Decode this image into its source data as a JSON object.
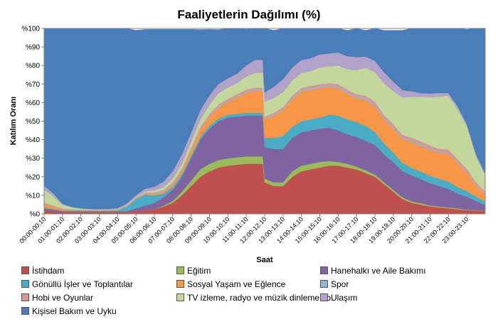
{
  "chart_data": {
    "type": "area",
    "stacked": true,
    "title": "Faaliyetlerin Dağılımı (%)",
    "xlabel": "Saat",
    "ylabel": "Katılım Oranı",
    "ylim": [
      0,
      100
    ],
    "yticks": [
      0,
      10,
      20,
      30,
      40,
      50,
      60,
      70,
      80,
      90,
      100
    ],
    "ytick_labels": [
      "%0",
      "%10",
      "%20",
      "%30",
      "%40",
      "%50",
      "%60",
      "%70",
      "%80",
      "%90",
      "%100"
    ],
    "x_tick_labels": [
      "00:00-00:10",
      "01:00-01:10",
      "02:00-02:10",
      "03:00-03:10",
      "04:00-04:10",
      "05:00-05:10",
      "06:00-06:10",
      "07:00-07:10",
      "08:00-08:10",
      "09:00-09:10",
      "10:00-10:10",
      "11:00-11:10",
      "12:00-12:10",
      "13:00-13:10",
      "14:00-14:10",
      "15:00-15:10",
      "16:00-16:10",
      "17:00-17:10",
      "18:00-18:10",
      "19:00-19:10",
      "20:00-20:10",
      "21:00-21:10",
      "22:00-22:10",
      "23:00-23:10"
    ],
    "x_hours": [
      0,
      0.5,
      1,
      1.5,
      2,
      2.5,
      3,
      3.5,
      4,
      4.5,
      5,
      5.5,
      6,
      6.5,
      7,
      7.5,
      8,
      8.5,
      9,
      9.5,
      10,
      10.5,
      11,
      11.5,
      11.9,
      12,
      12.5,
      13,
      13.5,
      14,
      14.5,
      15,
      15.5,
      16,
      16.5,
      17,
      17.5,
      18,
      18.5,
      19,
      19.5,
      20,
      20.5,
      21,
      21.5,
      22,
      22.5,
      23,
      23.5,
      24
    ],
    "legend_position": "bottom",
    "series": [
      {
        "name": "İstihdam",
        "color": "#c0504d",
        "values": [
          2,
          1.5,
          1,
          1,
          1,
          1,
          1,
          1,
          1,
          1,
          1.5,
          2,
          2.5,
          4,
          6,
          10,
          15,
          20,
          23,
          25,
          26,
          26.5,
          27,
          27,
          27,
          17,
          15,
          15,
          20,
          23,
          24,
          25,
          26,
          26,
          25,
          24,
          22,
          20,
          16,
          12,
          8,
          6,
          5,
          4,
          3.5,
          3,
          2.5,
          2,
          1.8,
          1.5
        ]
      },
      {
        "name": "Eğitim",
        "color": "#9bbb59",
        "values": [
          0,
          0,
          0,
          0,
          0,
          0,
          0,
          0,
          0,
          0,
          0,
          0,
          0,
          0.5,
          1,
          2,
          3,
          4,
          4,
          4,
          4,
          4,
          4,
          4,
          4,
          2,
          2,
          2,
          3,
          3,
          3,
          3,
          2.5,
          2,
          2,
          1.5,
          1.5,
          1.2,
          1,
          1,
          1,
          0.8,
          0.8,
          0.6,
          0.5,
          0.5,
          0.5,
          0.3,
          0.2,
          0.2
        ]
      },
      {
        "name": "Hanehalkı ve Aile Bakımı",
        "color": "#8064a2",
        "values": [
          1,
          0.8,
          0.5,
          0.5,
          0.4,
          0.4,
          0.4,
          0.4,
          0.4,
          0.5,
          1.5,
          2.5,
          3.5,
          4.5,
          6,
          8,
          12,
          16,
          19,
          21,
          22,
          22,
          22,
          22,
          22,
          17,
          18,
          18,
          18,
          18,
          18,
          18,
          18,
          17,
          16,
          16,
          16,
          16,
          15,
          15,
          14,
          14,
          13,
          12,
          11,
          10,
          8,
          7,
          5,
          3
        ]
      },
      {
        "name": "Gönüllü İşler ve Toplantılar",
        "color": "#4bacc6",
        "values": [
          0.5,
          0.3,
          0.3,
          0.3,
          0.3,
          0.3,
          0.3,
          0.3,
          0.5,
          2.5,
          5,
          6,
          4,
          2,
          1.5,
          1.5,
          1.5,
          1.5,
          1.5,
          1.5,
          1.5,
          1.5,
          1.5,
          1.5,
          1.5,
          5,
          6,
          7,
          6,
          6,
          6,
          6,
          7,
          8,
          8,
          8,
          8,
          7,
          6,
          5,
          4.5,
          4,
          4,
          4,
          4,
          4,
          3.5,
          3,
          2.5,
          2
        ]
      },
      {
        "name": "Sosyal Yaşam ve Eğlence",
        "color": "#f79646",
        "values": [
          2,
          1.5,
          0.8,
          0.6,
          0.5,
          0.4,
          0.4,
          0.4,
          0.4,
          0.4,
          0.5,
          0.6,
          0.8,
          1,
          1.5,
          2,
          3,
          4,
          5,
          6,
          7,
          9,
          11,
          12,
          12,
          10,
          12,
          14,
          15,
          16,
          16,
          16,
          15,
          15,
          14,
          13,
          14,
          14,
          13,
          13,
          13,
          14,
          14,
          14,
          14,
          15,
          13,
          10,
          6,
          4
        ]
      },
      {
        "name": "Spor",
        "color": "#95b3d7",
        "values": [
          0.2,
          0.1,
          0.1,
          0,
          0,
          0,
          0,
          0,
          0,
          0.1,
          0.2,
          0.3,
          0.5,
          0.5,
          0.5,
          0.5,
          0.6,
          0.6,
          0.6,
          0.6,
          0.6,
          0.6,
          0.6,
          0.6,
          0.6,
          0.5,
          0.5,
          0.6,
          0.7,
          0.7,
          0.8,
          0.8,
          0.8,
          0.8,
          0.8,
          0.8,
          0.8,
          0.8,
          0.8,
          0.8,
          0.7,
          0.7,
          0.7,
          0.7,
          0.6,
          0.6,
          0.5,
          0.5,
          0.4,
          0.3
        ]
      },
      {
        "name": "Hobi ve Oyunlar",
        "color": "#d99694",
        "values": [
          0.5,
          0.3,
          0.2,
          0.1,
          0.1,
          0.1,
          0.1,
          0.1,
          0.1,
          0.1,
          0.1,
          0.2,
          0.3,
          0.4,
          0.5,
          0.6,
          0.7,
          0.8,
          0.9,
          1,
          1,
          1,
          1,
          1,
          1,
          1,
          1,
          1,
          1.2,
          1.2,
          1.2,
          1.2,
          1.2,
          1.2,
          1.2,
          1.2,
          1.5,
          1.5,
          1.5,
          1.5,
          1.5,
          1.6,
          1.6,
          1.6,
          1.6,
          1.6,
          1.5,
          1.5,
          1.2,
          1
        ]
      },
      {
        "name": "TV izleme, radyo ve müzik dinleme vb.",
        "color": "#c3d69b",
        "values": [
          7,
          5,
          2,
          1,
          0.5,
          0.3,
          0.2,
          0.2,
          0.2,
          0.2,
          0.3,
          0.5,
          1,
          1.5,
          2,
          2.5,
          3,
          4,
          5,
          6,
          6,
          6,
          7,
          8,
          8,
          8,
          8,
          8,
          8,
          8,
          8,
          9,
          9,
          10,
          11,
          13,
          15,
          16,
          17,
          18,
          20,
          22,
          24,
          26,
          28,
          29,
          27,
          23,
          14,
          9
        ]
      },
      {
        "name": "Ulaşım",
        "color": "#b3a2c7",
        "values": [
          2,
          1.5,
          0.5,
          0.3,
          0.2,
          0.2,
          0.2,
          0.3,
          0.5,
          0.8,
          1,
          1.5,
          2,
          3,
          4,
          5,
          5,
          5,
          5,
          5,
          5,
          5,
          6,
          7,
          7,
          5,
          6,
          7,
          7,
          7,
          7,
          7,
          7,
          7,
          7,
          7,
          6,
          6,
          6,
          5,
          4,
          3,
          2,
          2,
          2,
          1.5,
          1.5,
          1.2,
          1,
          0.8
        ]
      },
      {
        "name": "Kişisel Bakım ve Uyku",
        "color": "#4a7ebb",
        "values": [
          84.8,
          89,
          94.6,
          96.2,
          97,
          97.3,
          97.4,
          97.3,
          96.9,
          94.4,
          88.9,
          85.9,
          84.9,
          82.1,
          76.5,
          67.4,
          55.7,
          43.5,
          35.5,
          29.3,
          27,
          24.4,
          19.5,
          16.9,
          16.9,
          34.5,
          30.5,
          27.4,
          21.1,
          17.1,
          16,
          14,
          13.5,
          13,
          14,
          15.5,
          14.2,
          17.5,
          22.7,
          27.7,
          32.3,
          33.9,
          34.9,
          35.1,
          34.8,
          34.8,
          42,
          51,
          67.9,
          78.2
        ]
      }
    ]
  }
}
